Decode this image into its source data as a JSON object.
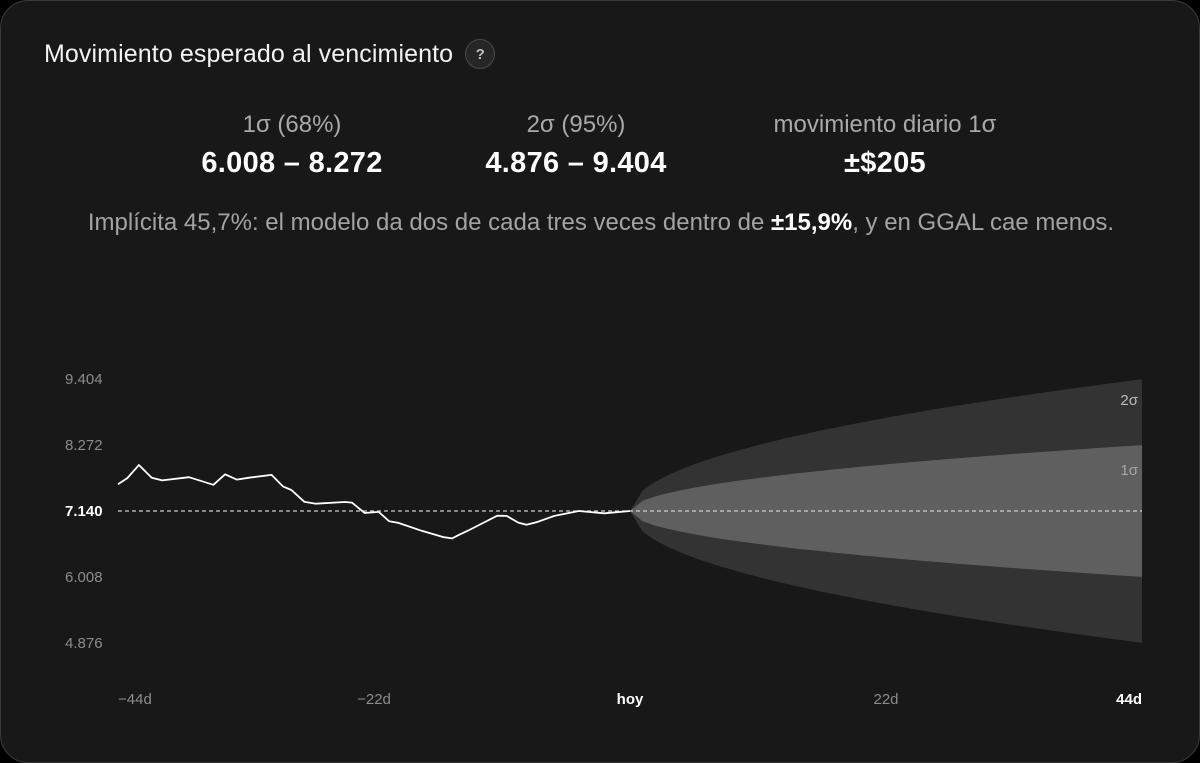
{
  "header": {
    "title": "Movimiento esperado al vencimiento",
    "help_label": "?"
  },
  "stats": [
    {
      "label": "1σ (68%)",
      "value": "6.008 – 8.272"
    },
    {
      "label": "2σ (95%)",
      "value": "4.876 – 9.404"
    },
    {
      "label": "movimiento diario 1σ",
      "value": "±$205"
    }
  ],
  "note": {
    "prefix": "Implícita 45,7%: el modelo da dos de cada tres veces dentro de ",
    "highlight": "±15,9%",
    "suffix": ", y en GGAL cae menos."
  },
  "colors": {
    "background": "#181818",
    "band_2sigma": "#333333",
    "band_1sigma": "#5f5f5f",
    "line": "#ffffff",
    "reference": "#cfcfcf"
  },
  "chart_data": {
    "type": "line",
    "current_value": 7140,
    "current_label": "7.140",
    "y_ticks": [
      {
        "value": 9404,
        "label": "9.404"
      },
      {
        "value": 8272,
        "label": "8.272"
      },
      {
        "value": 7140,
        "label": "7.140"
      },
      {
        "value": 6008,
        "label": "6.008"
      },
      {
        "value": 4876,
        "label": "4.876"
      }
    ],
    "x_ticks": [
      {
        "value": -44,
        "label": "−44d"
      },
      {
        "value": -22,
        "label": "−22d"
      },
      {
        "value": 0,
        "label": "hoy"
      },
      {
        "value": 22,
        "label": "22d"
      },
      {
        "value": 44,
        "label": "44d"
      }
    ],
    "x_range": [
      -44,
      44
    ],
    "y_range": [
      4700,
      9580
    ],
    "band_labels": {
      "sigma2": "2σ",
      "sigma1": "1σ"
    },
    "bands_at_expiry": {
      "sigma1": [
        6008,
        8272
      ],
      "sigma2": [
        4876,
        9404
      ]
    },
    "series": [
      {
        "x": [
          -44,
          -43.2,
          -42.2,
          -41.1,
          -40.2,
          -37.9,
          -35.8,
          -34.8,
          -33.8,
          -32.8,
          -30.8,
          -29.8,
          -29.1,
          -28.0,
          -27.0,
          -24.5,
          -23.9,
          -22.8,
          -21.6,
          -20.7,
          -19.9,
          -17.9,
          -16.0,
          -15.3,
          -14.6,
          -13.9,
          -11.4,
          -10.6,
          -9.6,
          -8.9,
          -8.0,
          -6.5,
          -4.4,
          -2.2,
          0
        ],
        "y": [
          7600,
          7705,
          7930,
          7710,
          7665,
          7720,
          7590,
          7770,
          7680,
          7710,
          7760,
          7560,
          7500,
          7300,
          7265,
          7295,
          7285,
          7105,
          7125,
          6965,
          6935,
          6800,
          6690,
          6670,
          6740,
          6805,
          7060,
          7055,
          6940,
          6905,
          6950,
          7055,
          7140,
          7100,
          7140
        ]
      }
    ]
  }
}
